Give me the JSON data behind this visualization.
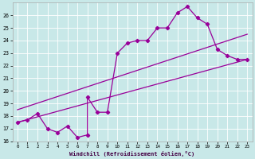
{
  "xlabel": "Windchill (Refroidissement éolien,°C)",
  "bg_color": "#c8e8e8",
  "line_color": "#990099",
  "xlim": [
    -0.5,
    23.5
  ],
  "ylim": [
    16,
    27
  ],
  "yticks": [
    16,
    17,
    18,
    19,
    20,
    21,
    22,
    23,
    24,
    25,
    26
  ],
  "xticks": [
    0,
    1,
    2,
    3,
    4,
    5,
    6,
    7,
    8,
    9,
    10,
    11,
    12,
    13,
    14,
    15,
    16,
    17,
    18,
    19,
    20,
    21,
    22,
    23
  ],
  "data_x": [
    0,
    1,
    2,
    3,
    4,
    5,
    6,
    7,
    7,
    8,
    9,
    10,
    11,
    12,
    13,
    14,
    15,
    16,
    17,
    18,
    19,
    20,
    21,
    22,
    23
  ],
  "data_y": [
    17.5,
    17.7,
    18.2,
    17.0,
    16.7,
    17.2,
    16.3,
    16.5,
    19.5,
    18.3,
    18.3,
    23.0,
    23.8,
    24.0,
    24.0,
    25.0,
    25.0,
    26.2,
    26.7,
    25.8,
    25.3,
    23.3,
    22.8,
    22.5,
    22.5
  ],
  "line1_x": [
    0,
    23
  ],
  "line1_y": [
    17.5,
    22.5
  ],
  "line2_x": [
    0,
    23
  ],
  "line2_y": [
    18.5,
    24.5
  ],
  "grid_color": "#ffffff",
  "spine_color": "#aaaaaa"
}
